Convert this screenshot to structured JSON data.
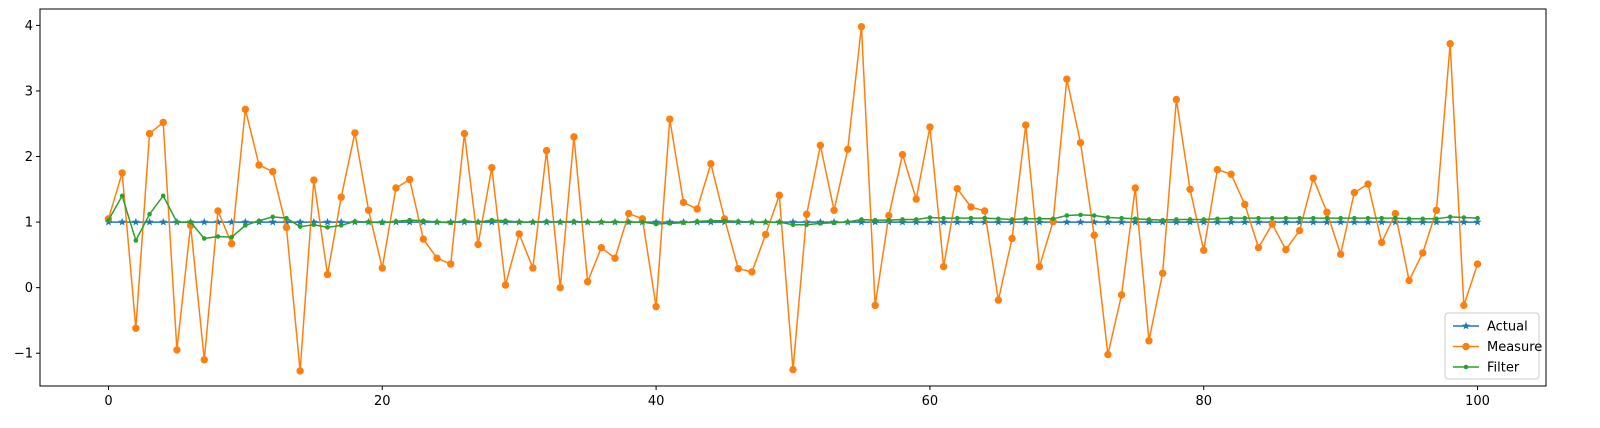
{
  "chart_data": {
    "type": "line",
    "title": "",
    "xlabel": "",
    "ylabel": "",
    "xlim": [
      -5,
      105
    ],
    "ylim": [
      -1.5,
      4.25
    ],
    "x_ticks": [
      0,
      20,
      40,
      60,
      80,
      100
    ],
    "x_tick_labels": [
      "0",
      "20",
      "40",
      "60",
      "80",
      "100"
    ],
    "y_ticks": [
      -1,
      0,
      1,
      2,
      3,
      4
    ],
    "y_tick_labels": [
      "−1",
      "0",
      "1",
      "2",
      "3",
      "4"
    ],
    "grid": false,
    "legend_position": "lower-right",
    "series": [
      {
        "name": "Actual",
        "color": "#1f77b4",
        "marker": "star",
        "values": [
          1,
          1,
          1,
          1,
          1,
          1,
          1,
          1,
          1,
          1,
          1,
          1,
          1,
          1,
          1,
          1,
          1,
          1,
          1,
          1,
          1,
          1,
          1,
          1,
          1,
          1,
          1,
          1,
          1,
          1,
          1,
          1,
          1,
          1,
          1,
          1,
          1,
          1,
          1,
          1,
          1,
          1,
          1,
          1,
          1,
          1,
          1,
          1,
          1,
          1,
          1,
          1,
          1,
          1,
          1,
          1,
          1,
          1,
          1,
          1,
          1,
          1,
          1,
          1,
          1,
          1,
          1,
          1,
          1,
          1,
          1,
          1,
          1,
          1,
          1,
          1,
          1,
          1,
          1,
          1,
          1,
          1,
          1,
          1,
          1,
          1,
          1,
          1,
          1,
          1,
          1,
          1,
          1,
          1,
          1,
          1,
          1,
          1,
          1,
          1,
          1
        ]
      },
      {
        "name": "Measure",
        "color": "#ff7f0e",
        "marker": "circle",
        "values": [
          1.05,
          1.75,
          -0.62,
          2.35,
          2.52,
          -0.95,
          0.95,
          -1.1,
          1.17,
          0.67,
          2.72,
          1.87,
          1.77,
          0.92,
          -1.27,
          1.64,
          0.2,
          1.38,
          2.36,
          1.18,
          0.3,
          1.52,
          1.65,
          0.74,
          0.45,
          0.36,
          2.35,
          0.66,
          1.83,
          0.04,
          0.82,
          0.3,
          2.09,
          0.0,
          2.3,
          0.09,
          0.61,
          0.45,
          1.13,
          1.05,
          -0.29,
          2.57,
          1.3,
          1.2,
          1.89,
          1.05,
          0.29,
          0.24,
          0.81,
          1.41,
          -1.25,
          1.12,
          2.17,
          1.18,
          2.11,
          3.98,
          -0.27,
          1.1,
          2.03,
          1.35,
          2.45,
          0.32,
          1.51,
          1.23,
          1.17,
          -0.19,
          0.75,
          2.48,
          0.32,
          1.01,
          3.18,
          2.21,
          0.8,
          -1.02,
          -0.11,
          1.52,
          -0.81,
          0.22,
          2.87,
          1.5,
          0.57,
          1.8,
          1.73,
          1.27,
          0.61,
          0.97,
          0.58,
          0.87,
          1.67,
          1.15,
          0.51,
          1.45,
          1.58,
          0.69,
          1.13,
          0.11,
          0.53,
          1.18,
          3.72,
          -0.27,
          0.36
        ]
      },
      {
        "name": "Filter",
        "color": "#2ca02c",
        "marker": "dot",
        "values": [
          1.03,
          1.4,
          0.72,
          1.12,
          1.4,
          1.0,
          1.0,
          0.75,
          0.78,
          0.77,
          0.95,
          1.02,
          1.08,
          1.06,
          0.93,
          0.96,
          0.92,
          0.95,
          1.01,
          1.0,
          0.99,
          1.01,
          1.03,
          1.02,
          1.0,
          0.99,
          1.02,
          1.0,
          1.03,
          1.02,
          1.0,
          1.0,
          1.01,
          1.0,
          1.01,
          1.0,
          1.0,
          1.0,
          1.0,
          1.0,
          0.97,
          0.98,
          0.99,
          1.01,
          1.02,
          1.02,
          1.01,
          1.0,
          1.0,
          1.0,
          0.96,
          0.96,
          0.98,
          0.99,
          1.0,
          1.04,
          1.03,
          1.03,
          1.04,
          1.04,
          1.07,
          1.06,
          1.06,
          1.06,
          1.06,
          1.05,
          1.04,
          1.05,
          1.05,
          1.05,
          1.1,
          1.11,
          1.1,
          1.07,
          1.06,
          1.05,
          1.04,
          1.03,
          1.04,
          1.04,
          1.04,
          1.05,
          1.06,
          1.06,
          1.06,
          1.06,
          1.06,
          1.06,
          1.06,
          1.06,
          1.06,
          1.06,
          1.06,
          1.06,
          1.06,
          1.05,
          1.05,
          1.05,
          1.08,
          1.07,
          1.06
        ]
      }
    ]
  }
}
